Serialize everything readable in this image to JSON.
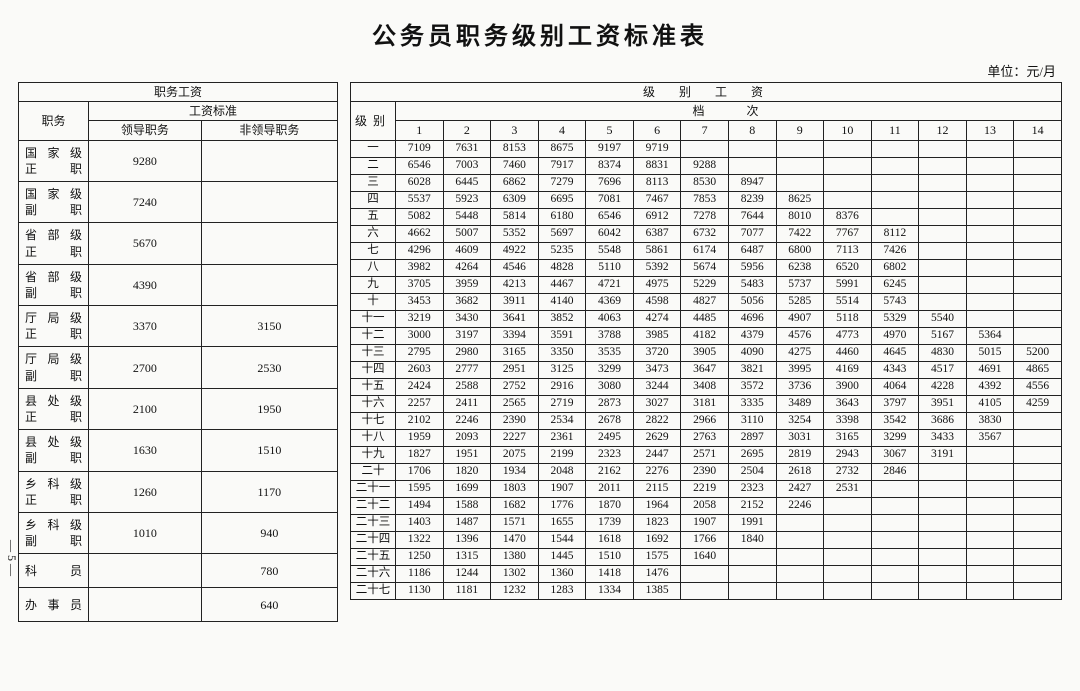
{
  "title": "公务员职务级别工资标准表",
  "unit_label": "单位：元/月",
  "page_number": "— 5 —",
  "left_table": {
    "header_top": "职务工资",
    "header_pos": "职务",
    "header_std": "工资标准",
    "header_lead": "领导职务",
    "header_nonlead": "非领导职务",
    "rows": [
      {
        "pos": "国家级正职",
        "lead": "9280",
        "nonlead": ""
      },
      {
        "pos": "国家级副职",
        "lead": "7240",
        "nonlead": ""
      },
      {
        "pos": "省部级正职",
        "lead": "5670",
        "nonlead": ""
      },
      {
        "pos": "省部级副职",
        "lead": "4390",
        "nonlead": ""
      },
      {
        "pos": "厅局级正职",
        "lead": "3370",
        "nonlead": "3150"
      },
      {
        "pos": "厅局级副职",
        "lead": "2700",
        "nonlead": "2530"
      },
      {
        "pos": "县处级正职",
        "lead": "2100",
        "nonlead": "1950"
      },
      {
        "pos": "县处级副职",
        "lead": "1630",
        "nonlead": "1510"
      },
      {
        "pos": "乡科级正职",
        "lead": "1260",
        "nonlead": "1170"
      },
      {
        "pos": "乡科级副职",
        "lead": "1010",
        "nonlead": "940"
      },
      {
        "pos": "科　员",
        "lead": "",
        "nonlead": "780"
      },
      {
        "pos": "办事员",
        "lead": "",
        "nonlead": "640"
      }
    ]
  },
  "right_table": {
    "header_top": "级　别　工　资",
    "header_level": "级别",
    "header_grade": "档　　次",
    "grade_nums": [
      "1",
      "2",
      "3",
      "4",
      "5",
      "6",
      "7",
      "8",
      "9",
      "10",
      "11",
      "12",
      "13",
      "14"
    ],
    "rows": [
      {
        "lvl": "一",
        "v": [
          "7109",
          "7631",
          "8153",
          "8675",
          "9197",
          "9719",
          "",
          "",
          "",
          "",
          "",
          "",
          "",
          ""
        ]
      },
      {
        "lvl": "二",
        "v": [
          "6546",
          "7003",
          "7460",
          "7917",
          "8374",
          "8831",
          "9288",
          "",
          "",
          "",
          "",
          "",
          "",
          ""
        ]
      },
      {
        "lvl": "三",
        "v": [
          "6028",
          "6445",
          "6862",
          "7279",
          "7696",
          "8113",
          "8530",
          "8947",
          "",
          "",
          "",
          "",
          "",
          ""
        ]
      },
      {
        "lvl": "四",
        "v": [
          "5537",
          "5923",
          "6309",
          "6695",
          "7081",
          "7467",
          "7853",
          "8239",
          "8625",
          "",
          "",
          "",
          "",
          ""
        ]
      },
      {
        "lvl": "五",
        "v": [
          "5082",
          "5448",
          "5814",
          "6180",
          "6546",
          "6912",
          "7278",
          "7644",
          "8010",
          "8376",
          "",
          "",
          "",
          ""
        ]
      },
      {
        "lvl": "六",
        "v": [
          "4662",
          "5007",
          "5352",
          "5697",
          "6042",
          "6387",
          "6732",
          "7077",
          "7422",
          "7767",
          "8112",
          "",
          "",
          ""
        ]
      },
      {
        "lvl": "七",
        "v": [
          "4296",
          "4609",
          "4922",
          "5235",
          "5548",
          "5861",
          "6174",
          "6487",
          "6800",
          "7113",
          "7426",
          "",
          "",
          ""
        ]
      },
      {
        "lvl": "八",
        "v": [
          "3982",
          "4264",
          "4546",
          "4828",
          "5110",
          "5392",
          "5674",
          "5956",
          "6238",
          "6520",
          "6802",
          "",
          "",
          ""
        ]
      },
      {
        "lvl": "九",
        "v": [
          "3705",
          "3959",
          "4213",
          "4467",
          "4721",
          "4975",
          "5229",
          "5483",
          "5737",
          "5991",
          "6245",
          "",
          "",
          ""
        ]
      },
      {
        "lvl": "十",
        "v": [
          "3453",
          "3682",
          "3911",
          "4140",
          "4369",
          "4598",
          "4827",
          "5056",
          "5285",
          "5514",
          "5743",
          "",
          "",
          ""
        ]
      },
      {
        "lvl": "十一",
        "v": [
          "3219",
          "3430",
          "3641",
          "3852",
          "4063",
          "4274",
          "4485",
          "4696",
          "4907",
          "5118",
          "5329",
          "5540",
          "",
          ""
        ]
      },
      {
        "lvl": "十二",
        "v": [
          "3000",
          "3197",
          "3394",
          "3591",
          "3788",
          "3985",
          "4182",
          "4379",
          "4576",
          "4773",
          "4970",
          "5167",
          "5364",
          ""
        ]
      },
      {
        "lvl": "十三",
        "v": [
          "2795",
          "2980",
          "3165",
          "3350",
          "3535",
          "3720",
          "3905",
          "4090",
          "4275",
          "4460",
          "4645",
          "4830",
          "5015",
          "5200"
        ]
      },
      {
        "lvl": "十四",
        "v": [
          "2603",
          "2777",
          "2951",
          "3125",
          "3299",
          "3473",
          "3647",
          "3821",
          "3995",
          "4169",
          "4343",
          "4517",
          "4691",
          "4865"
        ]
      },
      {
        "lvl": "十五",
        "v": [
          "2424",
          "2588",
          "2752",
          "2916",
          "3080",
          "3244",
          "3408",
          "3572",
          "3736",
          "3900",
          "4064",
          "4228",
          "4392",
          "4556"
        ]
      },
      {
        "lvl": "十六",
        "v": [
          "2257",
          "2411",
          "2565",
          "2719",
          "2873",
          "3027",
          "3181",
          "3335",
          "3489",
          "3643",
          "3797",
          "3951",
          "4105",
          "4259"
        ]
      },
      {
        "lvl": "十七",
        "v": [
          "2102",
          "2246",
          "2390",
          "2534",
          "2678",
          "2822",
          "2966",
          "3110",
          "3254",
          "3398",
          "3542",
          "3686",
          "3830",
          ""
        ]
      },
      {
        "lvl": "十八",
        "v": [
          "1959",
          "2093",
          "2227",
          "2361",
          "2495",
          "2629",
          "2763",
          "2897",
          "3031",
          "3165",
          "3299",
          "3433",
          "3567",
          ""
        ]
      },
      {
        "lvl": "十九",
        "v": [
          "1827",
          "1951",
          "2075",
          "2199",
          "2323",
          "2447",
          "2571",
          "2695",
          "2819",
          "2943",
          "3067",
          "3191",
          "",
          ""
        ]
      },
      {
        "lvl": "二十",
        "v": [
          "1706",
          "1820",
          "1934",
          "2048",
          "2162",
          "2276",
          "2390",
          "2504",
          "2618",
          "2732",
          "2846",
          "",
          "",
          ""
        ]
      },
      {
        "lvl": "二十一",
        "v": [
          "1595",
          "1699",
          "1803",
          "1907",
          "2011",
          "2115",
          "2219",
          "2323",
          "2427",
          "2531",
          "",
          "",
          "",
          ""
        ]
      },
      {
        "lvl": "二十二",
        "v": [
          "1494",
          "1588",
          "1682",
          "1776",
          "1870",
          "1964",
          "2058",
          "2152",
          "2246",
          "",
          "",
          "",
          "",
          ""
        ]
      },
      {
        "lvl": "二十三",
        "v": [
          "1403",
          "1487",
          "1571",
          "1655",
          "1739",
          "1823",
          "1907",
          "1991",
          "",
          "",
          "",
          "",
          "",
          ""
        ]
      },
      {
        "lvl": "二十四",
        "v": [
          "1322",
          "1396",
          "1470",
          "1544",
          "1618",
          "1692",
          "1766",
          "1840",
          "",
          "",
          "",
          "",
          "",
          ""
        ]
      },
      {
        "lvl": "二十五",
        "v": [
          "1250",
          "1315",
          "1380",
          "1445",
          "1510",
          "1575",
          "1640",
          "",
          "",
          "",
          "",
          "",
          "",
          ""
        ]
      },
      {
        "lvl": "二十六",
        "v": [
          "1186",
          "1244",
          "1302",
          "1360",
          "1418",
          "1476",
          "",
          "",
          "",
          "",
          "",
          "",
          "",
          ""
        ]
      },
      {
        "lvl": "二十七",
        "v": [
          "1130",
          "1181",
          "1232",
          "1283",
          "1334",
          "1385",
          "",
          "",
          "",
          "",
          "",
          "",
          "",
          ""
        ]
      }
    ]
  }
}
